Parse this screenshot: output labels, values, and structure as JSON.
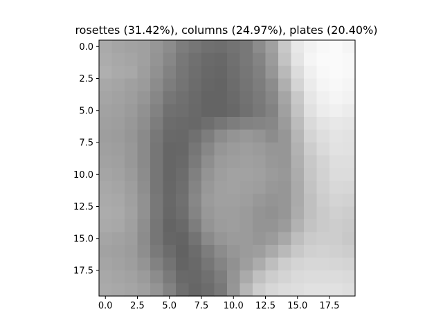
{
  "chart_data": {
    "type": "heatmap",
    "title": "rosettes (31.42%), columns (24.97%), plates (20.40%)",
    "colormap": "gray",
    "grid": false,
    "xlabel": "",
    "ylabel": "",
    "xlim": [
      -0.5,
      19.5
    ],
    "ylim": [
      19.5,
      -0.5
    ],
    "xticks": [
      0.0,
      2.5,
      5.0,
      7.5,
      10.0,
      12.5,
      15.0,
      17.5
    ],
    "xtick_labels": [
      "0.0",
      "2.5",
      "5.0",
      "7.5",
      "10.0",
      "12.5",
      "15.0",
      "17.5"
    ],
    "yticks": [
      0.0,
      2.5,
      5.0,
      7.5,
      10.0,
      12.5,
      15.0,
      17.5
    ],
    "ytick_labels": [
      "0.0",
      "2.5",
      "5.0",
      "7.5",
      "10.0",
      "12.5",
      "15.0",
      "17.5"
    ],
    "vrange": [
      0,
      255
    ],
    "values": [
      [
        170,
        165,
        162,
        160,
        150,
        140,
        125,
        118,
        112,
        110,
        115,
        120,
        140,
        160,
        200,
        232,
        242,
        248,
        250,
        245
      ],
      [
        172,
        168,
        165,
        160,
        148,
        135,
        120,
        112,
        106,
        104,
        112,
        120,
        132,
        155,
        195,
        228,
        245,
        250,
        250,
        248
      ],
      [
        175,
        170,
        168,
        158,
        145,
        130,
        118,
        110,
        104,
        102,
        110,
        118,
        128,
        150,
        185,
        220,
        240,
        248,
        250,
        248
      ],
      [
        168,
        165,
        160,
        155,
        140,
        125,
        116,
        108,
        102,
        100,
        108,
        116,
        125,
        140,
        175,
        212,
        235,
        245,
        248,
        245
      ],
      [
        165,
        162,
        158,
        150,
        135,
        118,
        112,
        106,
        100,
        100,
        106,
        114,
        122,
        135,
        165,
        200,
        230,
        240,
        245,
        242
      ],
      [
        162,
        160,
        155,
        145,
        130,
        112,
        110,
        105,
        100,
        100,
        104,
        112,
        120,
        130,
        160,
        195,
        225,
        236,
        240,
        236
      ],
      [
        160,
        158,
        152,
        142,
        125,
        108,
        106,
        104,
        110,
        118,
        125,
        130,
        132,
        135,
        155,
        188,
        218,
        228,
        232,
        230
      ],
      [
        158,
        156,
        150,
        138,
        120,
        105,
        104,
        112,
        125,
        140,
        148,
        152,
        148,
        140,
        150,
        182,
        212,
        222,
        228,
        226
      ],
      [
        160,
        158,
        152,
        138,
        118,
        102,
        103,
        118,
        135,
        150,
        155,
        158,
        155,
        150,
        150,
        178,
        205,
        218,
        226,
        225
      ],
      [
        162,
        160,
        152,
        138,
        118,
        102,
        105,
        122,
        142,
        155,
        158,
        160,
        158,
        152,
        150,
        175,
        200,
        212,
        222,
        222
      ],
      [
        165,
        162,
        155,
        140,
        118,
        102,
        108,
        128,
        148,
        158,
        162,
        162,
        160,
        155,
        152,
        172,
        198,
        210,
        220,
        220
      ],
      [
        168,
        165,
        158,
        142,
        118,
        103,
        110,
        132,
        152,
        160,
        162,
        160,
        158,
        152,
        150,
        170,
        195,
        208,
        216,
        215
      ],
      [
        170,
        168,
        160,
        145,
        120,
        104,
        112,
        135,
        155,
        160,
        160,
        158,
        152,
        148,
        150,
        170,
        192,
        205,
        212,
        210
      ],
      [
        172,
        170,
        162,
        145,
        120,
        103,
        110,
        132,
        152,
        158,
        158,
        155,
        148,
        145,
        150,
        172,
        192,
        202,
        208,
        205
      ],
      [
        170,
        168,
        160,
        142,
        118,
        100,
        105,
        125,
        148,
        156,
        158,
        155,
        148,
        148,
        155,
        178,
        195,
        202,
        205,
        202
      ],
      [
        165,
        162,
        158,
        140,
        118,
        102,
        100,
        115,
        138,
        150,
        155,
        155,
        150,
        155,
        168,
        190,
        202,
        205,
        205,
        200
      ],
      [
        162,
        160,
        156,
        142,
        122,
        108,
        98,
        108,
        125,
        140,
        150,
        155,
        158,
        170,
        185,
        200,
        208,
        210,
        208,
        205
      ],
      [
        165,
        162,
        158,
        148,
        130,
        115,
        100,
        105,
        118,
        132,
        145,
        158,
        172,
        190,
        205,
        212,
        215,
        215,
        214,
        212
      ],
      [
        168,
        165,
        162,
        155,
        140,
        122,
        105,
        104,
        112,
        125,
        148,
        170,
        192,
        205,
        212,
        218,
        220,
        220,
        220,
        218
      ],
      [
        170,
        168,
        165,
        160,
        148,
        130,
        110,
        102,
        108,
        120,
        150,
        182,
        205,
        215,
        220,
        222,
        225,
        225,
        225,
        222
      ]
    ]
  }
}
